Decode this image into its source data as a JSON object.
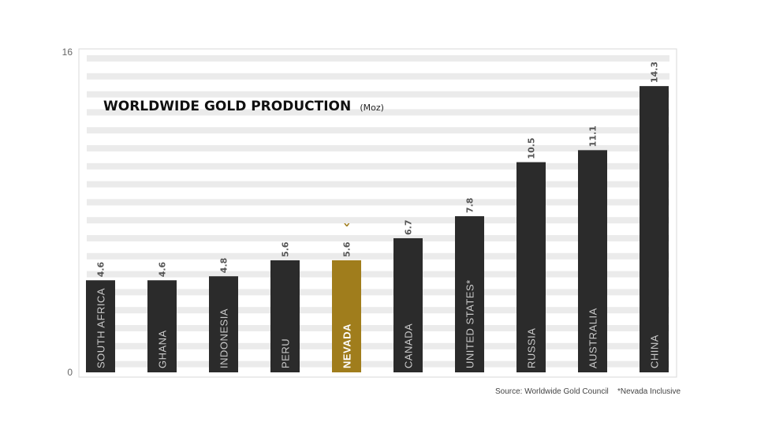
{
  "chart_data": {
    "type": "bar",
    "title": "WORLDWIDE GOLD PRODUCTION",
    "unit": "(Moz)",
    "categories": [
      "SOUTH AFRICA",
      "GHANA",
      "INDONESIA",
      "PERU",
      "NEVADA",
      "CANADA",
      "UNITED STATES*",
      "RUSSIA",
      "AUSTRALIA",
      "CHINA"
    ],
    "values": [
      4.6,
      4.6,
      4.8,
      5.6,
      5.6,
      6.7,
      7.8,
      10.5,
      11.1,
      14.3
    ],
    "value_labels": [
      "4.6",
      "4.6",
      "4.8",
      "5.6",
      "5.6",
      "6.7",
      "7.8",
      "10.5",
      "11.1",
      "14.3"
    ],
    "highlight": "NEVADA",
    "highlight_marker": "‹",
    "ylim": [
      0,
      16
    ],
    "y_ticks": [
      "0",
      "16"
    ],
    "xlabel": "",
    "ylabel": "",
    "grid": "horizontal stripes",
    "colors": {
      "bar": "#2b2b2b",
      "highlight": "#a07d1c",
      "stripe": "#ebebeb"
    }
  },
  "footer": {
    "source": "Source: Worldwide Gold Council",
    "note": "*Nevada Inclusive"
  }
}
